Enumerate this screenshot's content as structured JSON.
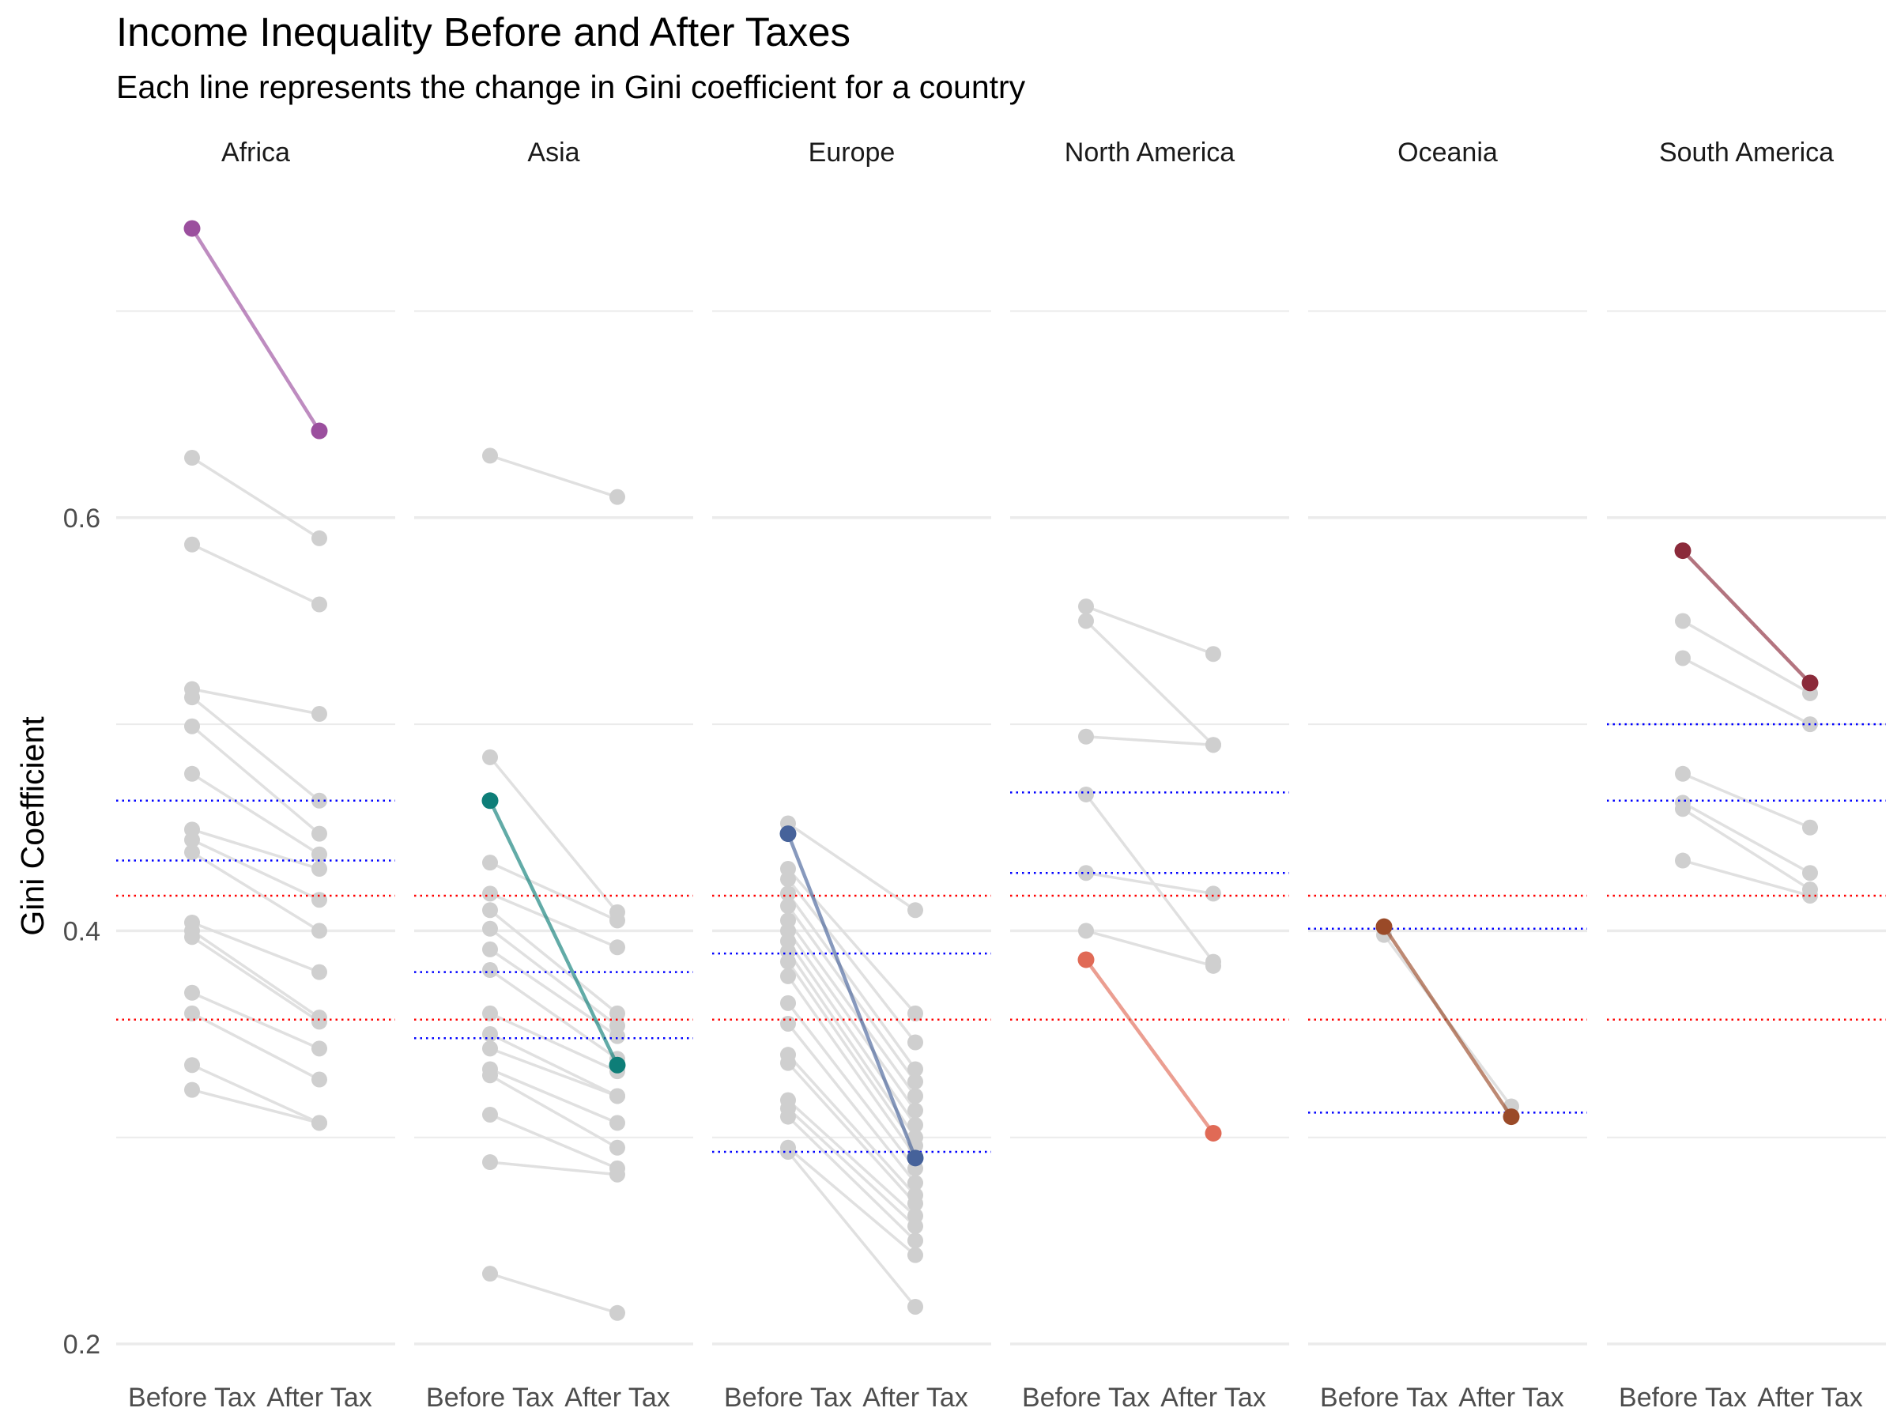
{
  "chart_data": {
    "type": "line",
    "title": "Income Inequality Before and After Taxes",
    "subtitle": "Each line represents the change in Gini coefficient for a country",
    "ylabel": "Gini Coefficient",
    "xlabel": "",
    "ylim": [
      0.2,
      0.75
    ],
    "yticks": [
      0.2,
      0.4,
      0.6
    ],
    "ytick_labels": [
      "0.2",
      "0.4",
      "0.6"
    ],
    "categories": [
      "Before Tax",
      "After Tax"
    ],
    "grid": true,
    "legend": "none",
    "colors": {
      "background_line": "#e0e0e0",
      "background_point": "#cfcfcf",
      "ref_red": "#ff0000",
      "ref_blue": "#0000ff",
      "gridline": "#ebebeb"
    },
    "panels": [
      {
        "name": "Africa",
        "highlight": {
          "before": 0.74,
          "after": 0.642,
          "color": "#9b4f9e"
        },
        "ref_blue": [
          0.463,
          0.434
        ],
        "ref_red": [
          0.417,
          0.357
        ],
        "pairs": [
          [
            0.629,
            0.59
          ],
          [
            0.587,
            0.558
          ],
          [
            0.517,
            0.505
          ],
          [
            0.513,
            0.463
          ],
          [
            0.499,
            0.447
          ],
          [
            0.476,
            0.437
          ],
          [
            0.449,
            0.43
          ],
          [
            0.444,
            0.415
          ],
          [
            0.438,
            0.4
          ],
          [
            0.404,
            0.38
          ],
          [
            0.4,
            0.358
          ],
          [
            0.397,
            0.356
          ],
          [
            0.37,
            0.343
          ],
          [
            0.36,
            0.328
          ],
          [
            0.335,
            0.307
          ],
          [
            0.323,
            0.307
          ]
        ]
      },
      {
        "name": "Asia",
        "highlight": {
          "before": 0.463,
          "after": 0.335,
          "color": "#0e7e78"
        },
        "ref_blue": [
          0.38,
          0.348
        ],
        "ref_red": [
          0.417,
          0.357
        ],
        "pairs": [
          [
            0.63,
            0.61
          ],
          [
            0.484,
            0.409
          ],
          [
            0.433,
            0.405
          ],
          [
            0.418,
            0.392
          ],
          [
            0.41,
            0.36
          ],
          [
            0.401,
            0.354
          ],
          [
            0.391,
            0.349
          ],
          [
            0.381,
            0.338
          ],
          [
            0.36,
            0.332
          ],
          [
            0.35,
            0.32
          ],
          [
            0.343,
            0.32
          ],
          [
            0.333,
            0.307
          ],
          [
            0.33,
            0.295
          ],
          [
            0.311,
            0.285
          ],
          [
            0.288,
            0.282
          ],
          [
            0.234,
            0.215
          ]
        ]
      },
      {
        "name": "Europe",
        "highlight": {
          "before": 0.447,
          "after": 0.29,
          "color": "#46629a"
        },
        "ref_blue": [
          0.389,
          0.293
        ],
        "ref_red": [
          0.417,
          0.357
        ],
        "pairs": [
          [
            0.452,
            0.41
          ],
          [
            0.43,
            0.36
          ],
          [
            0.425,
            0.346
          ],
          [
            0.418,
            0.333
          ],
          [
            0.412,
            0.327
          ],
          [
            0.405,
            0.32
          ],
          [
            0.4,
            0.313
          ],
          [
            0.395,
            0.306
          ],
          [
            0.39,
            0.3
          ],
          [
            0.385,
            0.296
          ],
          [
            0.378,
            0.291
          ],
          [
            0.365,
            0.285
          ],
          [
            0.355,
            0.278
          ],
          [
            0.34,
            0.272
          ],
          [
            0.336,
            0.268
          ],
          [
            0.318,
            0.262
          ],
          [
            0.314,
            0.257
          ],
          [
            0.31,
            0.25
          ],
          [
            0.295,
            0.243
          ],
          [
            0.293,
            0.218
          ]
        ]
      },
      {
        "name": "North America",
        "highlight": {
          "before": 0.386,
          "after": 0.302,
          "color": "#e06a56"
        },
        "ref_blue": [
          0.467,
          0.428
        ],
        "ref_red": [
          0.417,
          0.357
        ],
        "pairs": [
          [
            0.557,
            0.534
          ],
          [
            0.55,
            0.49
          ],
          [
            0.494,
            0.49
          ],
          [
            0.466,
            0.385
          ],
          [
            0.428,
            0.418
          ],
          [
            0.4,
            0.383
          ]
        ]
      },
      {
        "name": "Oceania",
        "highlight": {
          "before": 0.402,
          "after": 0.31,
          "color": "#9a4a28"
        },
        "ref_blue": [
          0.401,
          0.312
        ],
        "ref_red": [
          0.417,
          0.357
        ],
        "pairs": [
          [
            0.398,
            0.315
          ]
        ]
      },
      {
        "name": "South America",
        "highlight": {
          "before": 0.584,
          "after": 0.52,
          "color": "#8b2a3a"
        },
        "ref_blue": [
          0.5,
          0.463
        ],
        "ref_red": [
          0.417,
          0.357
        ],
        "pairs": [
          [
            0.55,
            0.515
          ],
          [
            0.532,
            0.5
          ],
          [
            0.476,
            0.45
          ],
          [
            0.462,
            0.428
          ],
          [
            0.459,
            0.42
          ],
          [
            0.434,
            0.417
          ]
        ]
      }
    ]
  }
}
